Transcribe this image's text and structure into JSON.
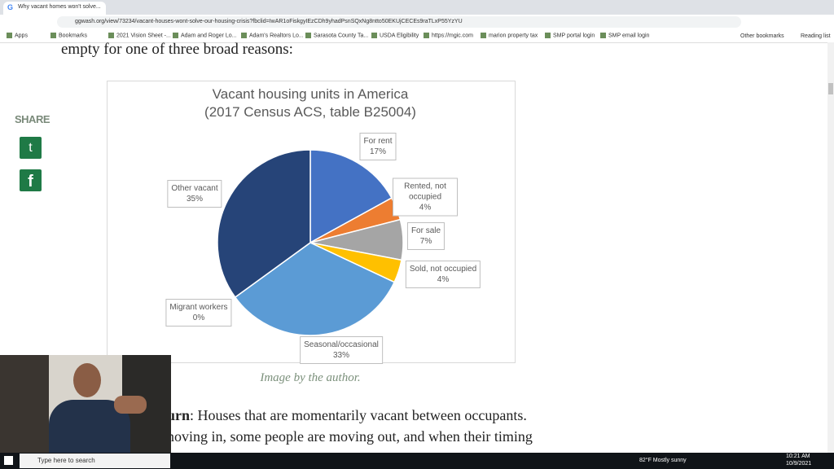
{
  "browser": {
    "tab_title": "Why vacant homes won't solve...",
    "url": "ggwash.org/view/73234/vacant-houses-wont-solve-our-housing-crisis?fbclid=IwAR1oFiskgyIEzCDh9yhadPsnSQxNg8ntto50EKUjCECEs9raTLxP55YzYU",
    "bookmarks": [
      "Apps",
      "Bookmarks",
      "2021 Vision Sheet -...",
      "Adam and Roger Lo...",
      "Adam's Realtors Lo...",
      "Sarasota County Ta...",
      "USDA Eligibility",
      "https://mgic.com",
      "marion property tax",
      "SMP portal login",
      "SMP email login"
    ],
    "other_bookmarks": "Other bookmarks",
    "reading_list": "Reading list"
  },
  "article": {
    "intro": "empty for one of three broad reasons:",
    "share": "SHARE",
    "caption": "Image by the author.",
    "para_bold": "urn",
    "para_line1": ": Houses that are momentarily vacant between occupants.",
    "para_line2": "noving in, some people are moving out, and when their timing"
  },
  "chart_data": {
    "type": "pie",
    "title": "Vacant housing units in America",
    "subtitle": "(2017 Census ACS, table B25004)",
    "categories": [
      "For rent",
      "Rented, not occupied",
      "For sale",
      "Sold, not occupied",
      "Seasonal/occasional",
      "Migrant workers",
      "Other vacant"
    ],
    "values": [
      17,
      4,
      7,
      4,
      33,
      0,
      35
    ],
    "value_labels": [
      "17%",
      "4%",
      "7%",
      "4%",
      "33%",
      "0%",
      "35%"
    ],
    "colors": [
      "#4472c4",
      "#ed7d31",
      "#a5a5a5",
      "#ffc000",
      "#5b9bd5",
      "#70ad47",
      "#264478"
    ]
  },
  "taskbar": {
    "search": "Type here to search",
    "weather": "82°F Mostly sunny",
    "time": "10:21 AM",
    "date": "10/9/2021"
  }
}
